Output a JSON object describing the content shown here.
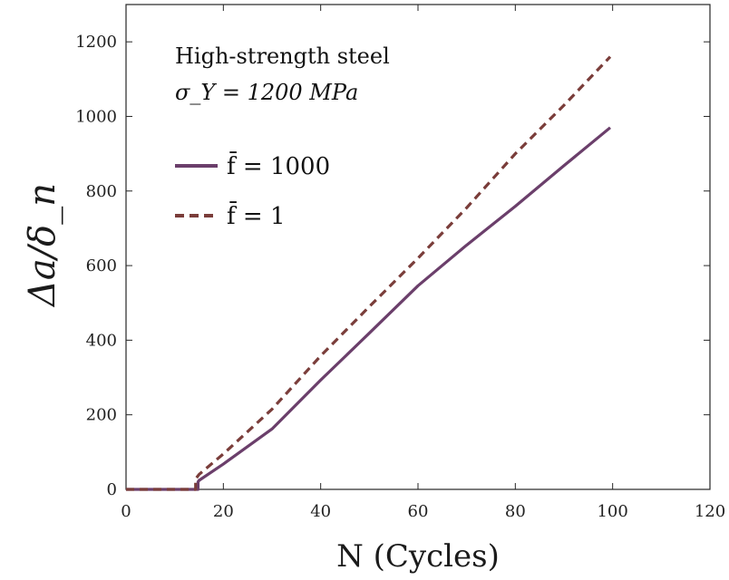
{
  "chart_data": {
    "type": "line",
    "title": "",
    "xlabel": "N (Cycles)",
    "ylabel": "Δa/δ_n",
    "xlim": [
      0,
      120
    ],
    "ylim": [
      0,
      1300
    ],
    "x_ticks": [
      0,
      20,
      40,
      60,
      80,
      100,
      120
    ],
    "y_ticks": [
      0,
      200,
      400,
      600,
      800,
      1000,
      1200
    ],
    "grid": false,
    "legend_position": "top-left",
    "annotations": [
      "High-strength steel",
      "σ_Y = 1200 MPa"
    ],
    "series": [
      {
        "name": "f̄ = 1000",
        "style": "solid",
        "color": "#6b3f6b",
        "points": [
          [
            0,
            0
          ],
          [
            14.8,
            0
          ],
          [
            14.8,
            20
          ],
          [
            15,
            24
          ],
          [
            20,
            68
          ],
          [
            30,
            162
          ],
          [
            40,
            293
          ],
          [
            50,
            419
          ],
          [
            60,
            546
          ],
          [
            70,
            655
          ],
          [
            80,
            759
          ],
          [
            90,
            868
          ],
          [
            99.5,
            970
          ]
        ]
      },
      {
        "name": "f̄ = 1",
        "style": "dashed",
        "color": "#7a3d3a",
        "points": [
          [
            0,
            0
          ],
          [
            14.3,
            0
          ],
          [
            14.3,
            28
          ],
          [
            15,
            40
          ],
          [
            20,
            95
          ],
          [
            30,
            215
          ],
          [
            40,
            358
          ],
          [
            50,
            490
          ],
          [
            60,
            620
          ],
          [
            70,
            755
          ],
          [
            80,
            900
          ],
          [
            90,
            1030
          ],
          [
            99.5,
            1160
          ]
        ]
      }
    ]
  }
}
